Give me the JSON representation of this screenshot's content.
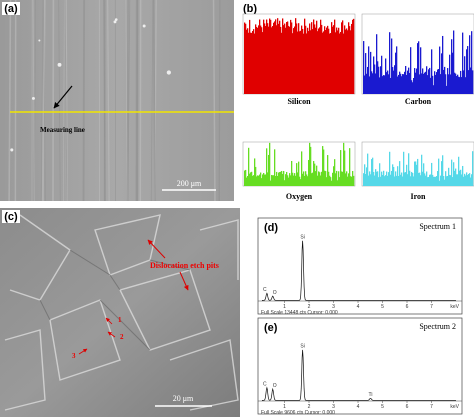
{
  "panel_a": {
    "label": "(a)",
    "annotation": "Measuring line",
    "scale_bar": "200 μm"
  },
  "panel_b": {
    "label": "(b)",
    "plots": [
      "Silicon",
      "Carbon",
      "Oxygen",
      "Iron"
    ]
  },
  "panel_c": {
    "label": "(c)",
    "annotation": "Dislocation etch pits",
    "markers": [
      "1",
      "2",
      "3"
    ],
    "scale_bar": "20 μm"
  },
  "panel_d": {
    "label": "(d)",
    "title": "Spectrum 1",
    "peaks": [
      "C",
      "O",
      "Si"
    ],
    "axis_ticks": [
      "1",
      "2",
      "3",
      "4",
      "5",
      "6",
      "7"
    ],
    "axis_unit": "keV",
    "footer": "Full Scale 13448 cts Cursor: 0.000"
  },
  "panel_e": {
    "label": "(e)",
    "title": "Spectrum 2",
    "peaks": [
      "C",
      "O",
      "Si",
      "Ti"
    ],
    "axis_ticks": [
      "1",
      "2",
      "3",
      "4",
      "5",
      "6",
      "7"
    ],
    "axis_unit": "keV",
    "footer": "Full Scale 9606 cts Cursor: 0.000"
  }
}
